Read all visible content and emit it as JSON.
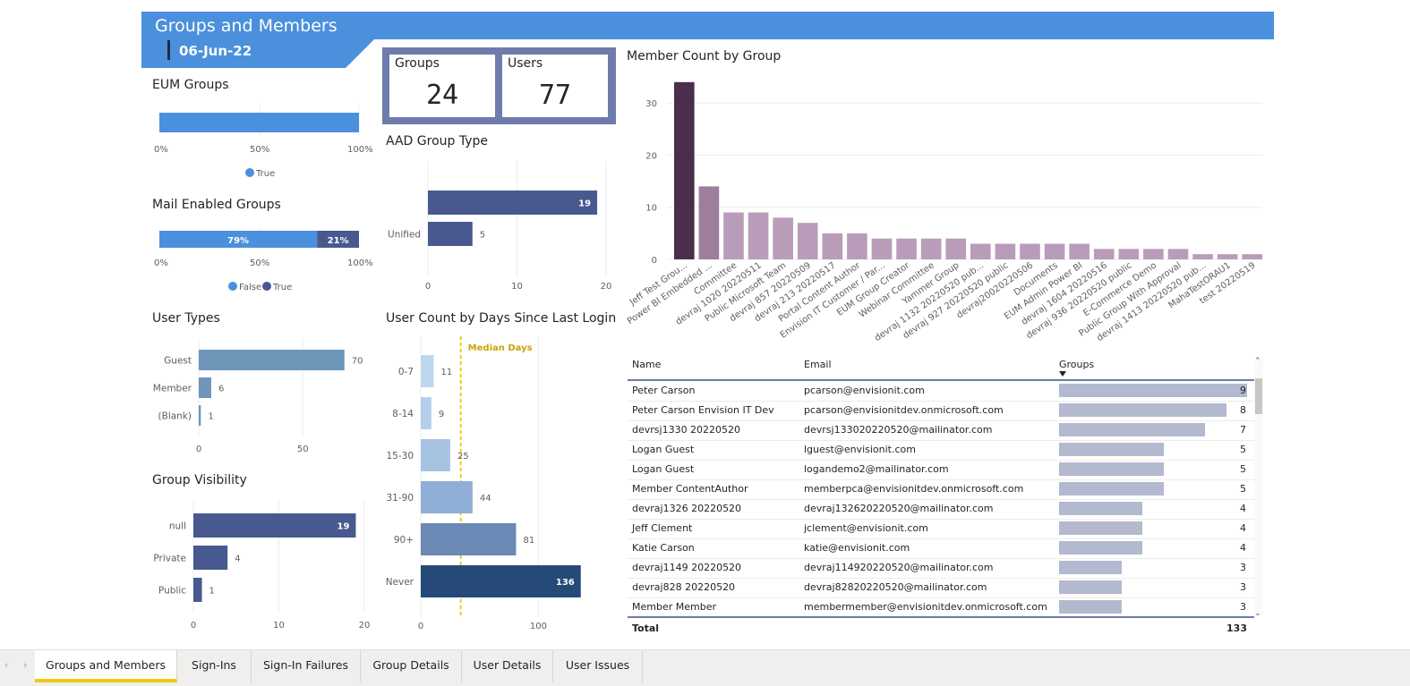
{
  "header": {
    "title": "Groups and Members",
    "date": "06-Jun-22"
  },
  "kpis": [
    {
      "label": "Groups",
      "value": "24"
    },
    {
      "label": "Users",
      "value": "77"
    }
  ],
  "eum_groups": {
    "title": "EUM Groups",
    "ticks": [
      "0%",
      "50%",
      "100%"
    ],
    "legend": [
      "True"
    ],
    "colors": {
      "True": "#4a90dc"
    },
    "chart_data": {
      "type": "bar",
      "orientation": "horizontal-stacked-100",
      "series": [
        {
          "name": "True",
          "values": [
            100
          ]
        }
      ]
    }
  },
  "mail_enabled": {
    "title": "Mail Enabled Groups",
    "ticks": [
      "0%",
      "50%",
      "100%"
    ],
    "legend": [
      "False",
      "True"
    ],
    "labels": [
      "79%",
      "21%"
    ],
    "colors": {
      "False": "#4a90dc",
      "True": "#48598f"
    },
    "chart_data": {
      "type": "bar",
      "orientation": "horizontal-stacked-100",
      "series": [
        {
          "name": "False",
          "values": [
            79
          ]
        },
        {
          "name": "True",
          "values": [
            21
          ]
        }
      ]
    }
  },
  "aad_group_type": {
    "title": "AAD Group Type",
    "chart_data": {
      "type": "bar",
      "orientation": "horizontal",
      "categories": [
        "",
        "Unified"
      ],
      "values": [
        19,
        5
      ],
      "xlim": [
        0,
        20
      ],
      "xticks": [
        "0",
        "10",
        "20"
      ]
    }
  },
  "user_types": {
    "title": "User Types",
    "chart_data": {
      "type": "bar",
      "orientation": "horizontal",
      "categories": [
        "Guest",
        "Member",
        "(Blank)"
      ],
      "values": [
        70,
        6,
        1
      ],
      "xlim": [
        0,
        80
      ],
      "xticks": [
        "0",
        "50"
      ]
    }
  },
  "group_visibility": {
    "title": "Group Visibility",
    "chart_data": {
      "type": "bar",
      "orientation": "horizontal",
      "categories": [
        "null",
        "Private",
        "Public"
      ],
      "values": [
        19,
        4,
        1
      ],
      "xlim": [
        0,
        20
      ],
      "xticks": [
        "0",
        "10",
        "20"
      ]
    }
  },
  "login_days": {
    "title": "User Count by Days Since Last Login",
    "median_label": "Median Days",
    "chart_data": {
      "type": "bar",
      "orientation": "horizontal",
      "categories": [
        "0-7",
        "8-14",
        "15-30",
        "31-90",
        "90+",
        "Never"
      ],
      "values": [
        11,
        9,
        25,
        44,
        81,
        136
      ],
      "xlim": [
        0,
        140
      ],
      "xticks": [
        "0",
        "100"
      ],
      "median": 34,
      "colors": [
        "#bdd7ee",
        "#b3cfec",
        "#a6c3e2",
        "#8eaed6",
        "#6a89b5",
        "#254a78"
      ]
    }
  },
  "member_count": {
    "title": "Member Count by Group",
    "chart_data": {
      "type": "bar",
      "categories": [
        "Jeff Test Grou...",
        "Power BI Embedded ...",
        "Committee",
        "devraj 1020 20220511",
        "Public Microsoft Team",
        "devraj 857 20220509",
        "devraj 213 20220517",
        "Portal Content Author",
        "Envision IT Customer / Par...",
        "EUM Group Creator",
        "Webinar Committee",
        "Yammer Group",
        "devraj 1132 20220520 pub...",
        "devraj 927 20220520 public",
        "devraj20020220506",
        "Documents",
        "EUM Admin Power BI",
        "devraj 1604 20220516",
        "devraj 936 20220520 public",
        "E-Commerce Demo",
        "Public Group With Approval",
        "devraj 1413 20220520 pub...",
        "MahaTestORAU1",
        "test 20220519"
      ],
      "values": [
        34,
        14,
        9,
        9,
        8,
        7,
        5,
        5,
        4,
        4,
        4,
        4,
        3,
        3,
        3,
        3,
        3,
        2,
        2,
        2,
        2,
        1,
        1,
        1
      ],
      "ylim": [
        0,
        35
      ],
      "yticks": [
        "0",
        "10",
        "20",
        "30"
      ],
      "colors": {
        "highlight": "#4a2e4c",
        "second": "#9e7e9b",
        "rest": "#b99cba"
      }
    }
  },
  "table": {
    "columns": [
      "Name",
      "Email",
      "Groups"
    ],
    "rows": [
      {
        "name": "Peter Carson",
        "email": "pcarson@envisionit.com",
        "groups": 9
      },
      {
        "name": "Peter Carson Envision IT Dev",
        "email": "pcarson@envisionitdev.onmicrosoft.com",
        "groups": 8
      },
      {
        "name": "devrsj1330 20220520",
        "email": "devrsj133020220520@mailinator.com",
        "groups": 7
      },
      {
        "name": "Logan Guest",
        "email": "lguest@envisionit.com",
        "groups": 5
      },
      {
        "name": "Logan Guest",
        "email": "logandemo2@mailinator.com",
        "groups": 5
      },
      {
        "name": "Member ContentAuthor",
        "email": "memberpca@envisionitdev.onmicrosoft.com",
        "groups": 5
      },
      {
        "name": "devraj1326 20220520",
        "email": "devraj132620220520@mailinator.com",
        "groups": 4
      },
      {
        "name": "Jeff Clement",
        "email": "jclement@envisionit.com",
        "groups": 4
      },
      {
        "name": "Katie Carson",
        "email": "katie@envisionit.com",
        "groups": 4
      },
      {
        "name": "devraj1149 20220520",
        "email": "devraj114920220520@mailinator.com",
        "groups": 3
      },
      {
        "name": "devraj828 20220520",
        "email": "devraj82820220520@mailinator.com",
        "groups": 3
      },
      {
        "name": "Member Member",
        "email": "membermember@envisionitdev.onmicrosoft.com",
        "groups": 3
      }
    ],
    "total_label": "Total",
    "total_value": "133"
  },
  "tabs": [
    {
      "label": "Groups and Members",
      "active": true
    },
    {
      "label": "Sign-Ins",
      "active": false
    },
    {
      "label": "Sign-In Failures",
      "active": false
    },
    {
      "label": "Group Details",
      "active": false
    },
    {
      "label": "User Details",
      "active": false
    },
    {
      "label": "User Issues",
      "active": false
    }
  ]
}
